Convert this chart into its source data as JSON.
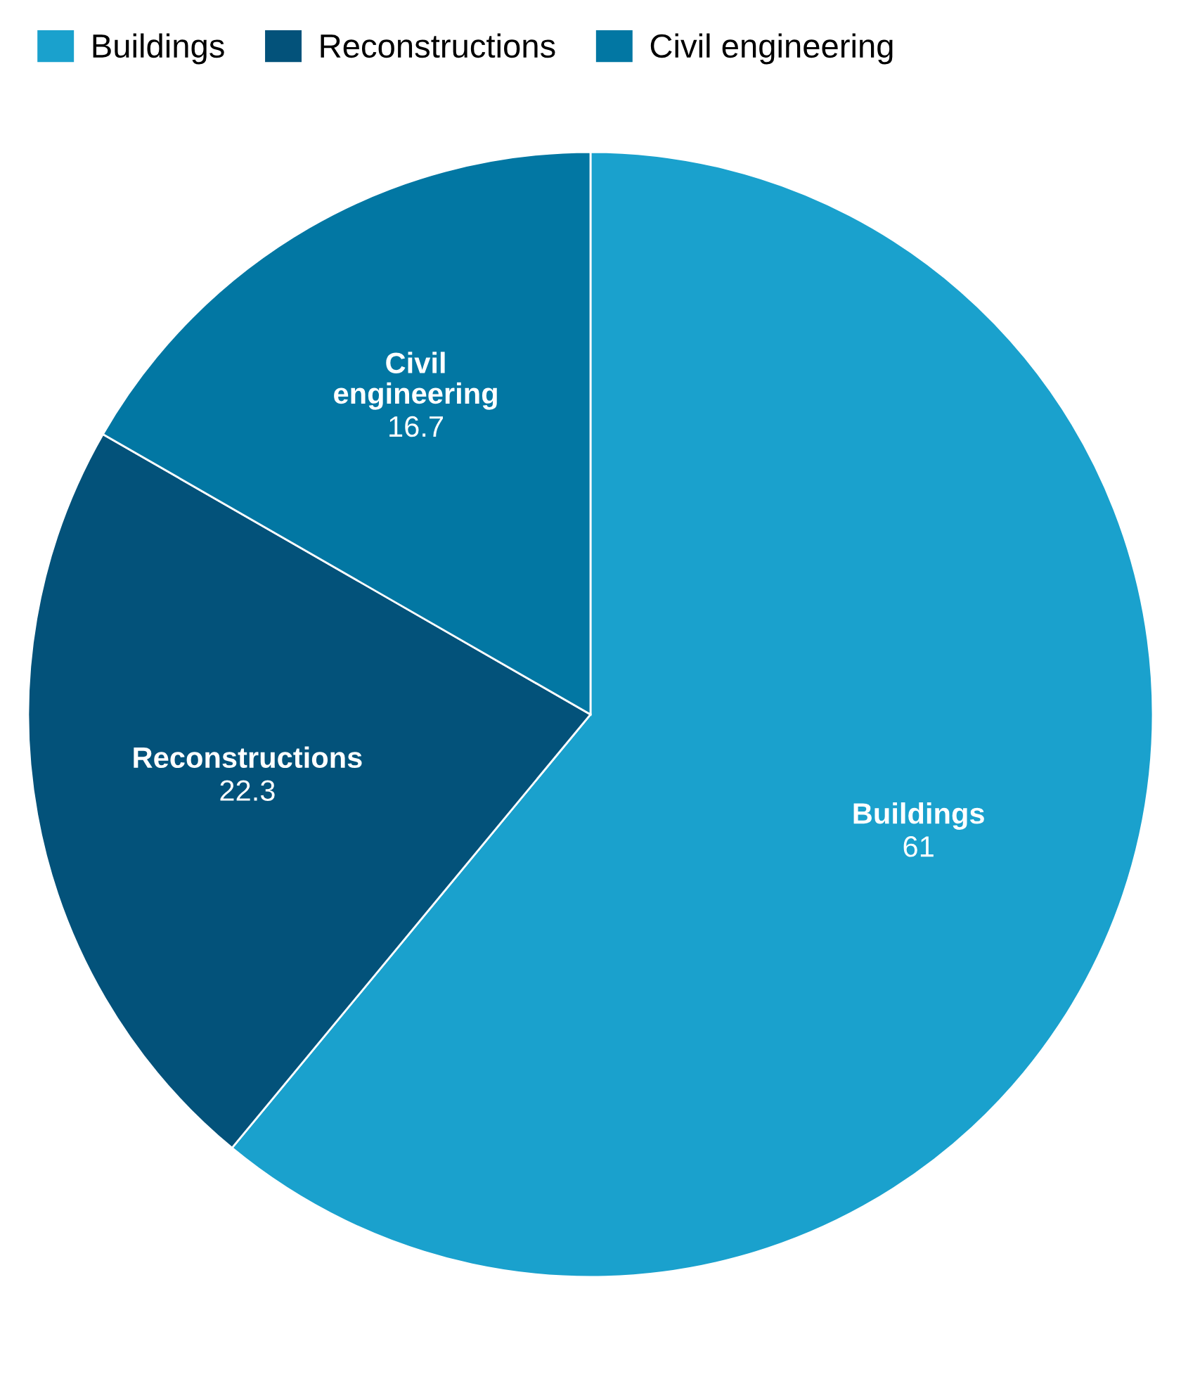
{
  "chart_data": {
    "type": "pie",
    "categories": [
      "Buildings",
      "Reconstructions",
      "Civil engineering"
    ],
    "values": [
      61,
      22.3,
      16.7
    ],
    "colors": [
      "#1aa1cd",
      "#03527a",
      "#0277a3"
    ],
    "data_labels": true,
    "legend": "top left"
  }
}
